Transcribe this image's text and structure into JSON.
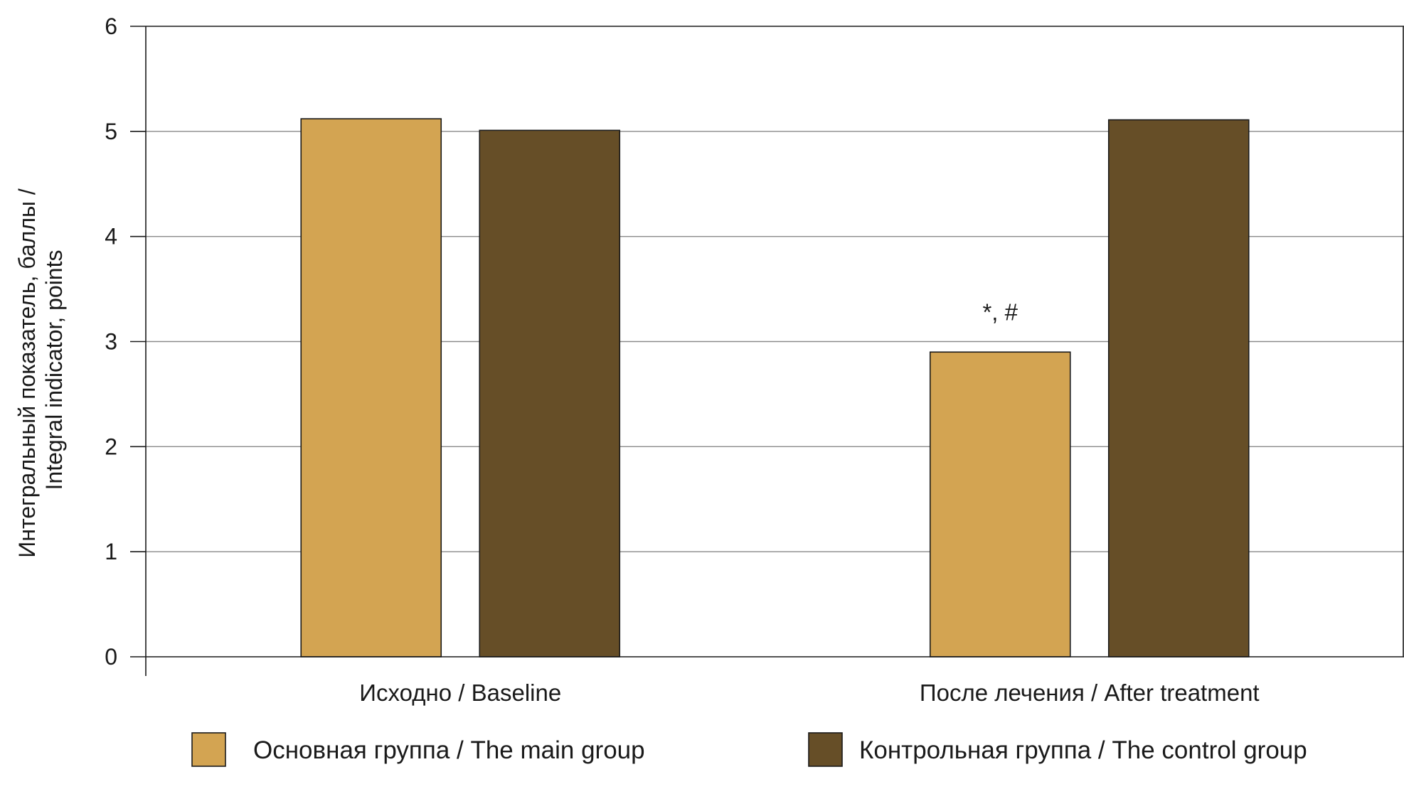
{
  "chart_data": {
    "type": "bar",
    "categories": [
      "Исходно / Baseline",
      "После лечения / After treatment"
    ],
    "series": [
      {
        "name": "Основная группа / The main group",
        "color": "#d3a452",
        "values": [
          5.12,
          2.9
        ]
      },
      {
        "name": "Контрольная группа / The control group",
        "color": "#664e27",
        "values": [
          5.01,
          5.11
        ]
      }
    ],
    "ylabel_lines": [
      "Интегральный показатель, баллы /",
      "Integral indicator, points"
    ],
    "ylim": [
      0,
      6
    ],
    "yticks": [
      "0",
      "1",
      "2",
      "3",
      "4",
      "5",
      "6"
    ],
    "grid": true,
    "legend_position": "bottom",
    "annotations": [
      {
        "text": "*, #",
        "category_index": 1,
        "series_index": 0
      }
    ]
  }
}
